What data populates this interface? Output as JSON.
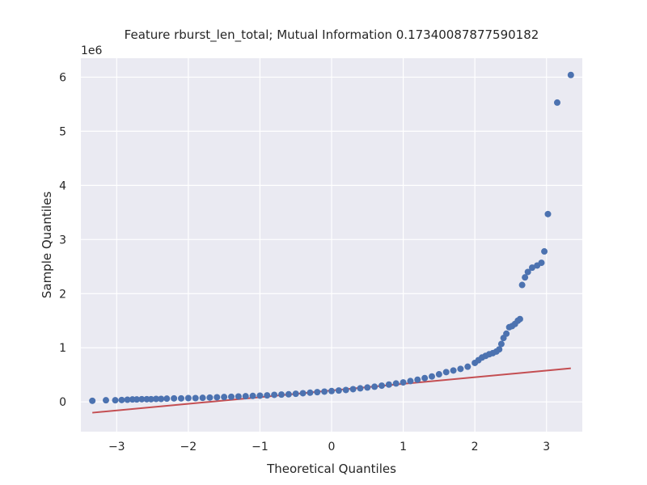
{
  "chart_data": {
    "type": "scatter",
    "title": "Feature rburst_len_total; Mutual Information 0.17340087877590182",
    "xlabel": "Theoretical Quantiles",
    "ylabel": "Sample Quantiles",
    "y_offset_label": "1e6",
    "x_ticks": [
      "−3",
      "−2",
      "−1",
      "0",
      "1",
      "2",
      "3"
    ],
    "y_ticks": [
      "0",
      "1",
      "2",
      "3",
      "4",
      "5",
      "6"
    ],
    "x_tick_values": [
      -3,
      -2,
      -1,
      0,
      1,
      2,
      3
    ],
    "y_tick_values": [
      0,
      1,
      2,
      3,
      4,
      5,
      6
    ],
    "xlim": [
      -3.5,
      3.5
    ],
    "ylim": [
      -0.55,
      6.35
    ],
    "grid": true,
    "colors": {
      "background": "#eaeaf2",
      "grid": "#ffffff",
      "points": "#4c72b0",
      "reference_line": "#c44e52"
    },
    "reference_line": {
      "x": [
        -3.34,
        3.34
      ],
      "y": [
        -0.2,
        0.62
      ]
    },
    "series": [
      {
        "values": [
          [
            -3.34,
            0.02
          ],
          [
            -3.15,
            0.03
          ],
          [
            -3.02,
            0.03
          ],
          [
            -2.93,
            0.035
          ],
          [
            -2.85,
            0.04
          ],
          [
            -2.78,
            0.045
          ],
          [
            -2.72,
            0.045
          ],
          [
            -2.65,
            0.05
          ],
          [
            -2.58,
            0.05
          ],
          [
            -2.52,
            0.05
          ],
          [
            -2.45,
            0.055
          ],
          [
            -2.38,
            0.055
          ],
          [
            -2.3,
            0.06
          ],
          [
            -2.2,
            0.065
          ],
          [
            -2.1,
            0.065
          ],
          [
            -2.0,
            0.07
          ],
          [
            -1.9,
            0.07
          ],
          [
            -1.8,
            0.075
          ],
          [
            -1.7,
            0.08
          ],
          [
            -1.6,
            0.085
          ],
          [
            -1.5,
            0.09
          ],
          [
            -1.4,
            0.095
          ],
          [
            -1.3,
            0.1
          ],
          [
            -1.2,
            0.105
          ],
          [
            -1.1,
            0.11
          ],
          [
            -1.0,
            0.115
          ],
          [
            -0.9,
            0.12
          ],
          [
            -0.8,
            0.13
          ],
          [
            -0.7,
            0.135
          ],
          [
            -0.6,
            0.14
          ],
          [
            -0.5,
            0.15
          ],
          [
            -0.4,
            0.16
          ],
          [
            -0.3,
            0.17
          ],
          [
            -0.2,
            0.18
          ],
          [
            -0.1,
            0.19
          ],
          [
            0.0,
            0.2
          ],
          [
            0.1,
            0.21
          ],
          [
            0.2,
            0.22
          ],
          [
            0.3,
            0.235
          ],
          [
            0.4,
            0.25
          ],
          [
            0.5,
            0.265
          ],
          [
            0.6,
            0.28
          ],
          [
            0.7,
            0.3
          ],
          [
            0.8,
            0.32
          ],
          [
            0.9,
            0.34
          ],
          [
            1.0,
            0.36
          ],
          [
            1.1,
            0.385
          ],
          [
            1.2,
            0.41
          ],
          [
            1.3,
            0.44
          ],
          [
            1.4,
            0.47
          ],
          [
            1.5,
            0.51
          ],
          [
            1.6,
            0.55
          ],
          [
            1.7,
            0.58
          ],
          [
            1.8,
            0.61
          ],
          [
            1.9,
            0.65
          ],
          [
            2.0,
            0.72
          ],
          [
            2.05,
            0.77
          ],
          [
            2.1,
            0.82
          ],
          [
            2.15,
            0.85
          ],
          [
            2.2,
            0.88
          ],
          [
            2.25,
            0.9
          ],
          [
            2.3,
            0.93
          ],
          [
            2.34,
            0.97
          ],
          [
            2.37,
            1.07
          ],
          [
            2.4,
            1.18
          ],
          [
            2.44,
            1.26
          ],
          [
            2.48,
            1.38
          ],
          [
            2.52,
            1.4
          ],
          [
            2.56,
            1.44
          ],
          [
            2.6,
            1.5
          ],
          [
            2.63,
            1.53
          ],
          [
            2.66,
            2.16
          ],
          [
            2.7,
            2.3
          ],
          [
            2.74,
            2.4
          ],
          [
            2.8,
            2.48
          ],
          [
            2.87,
            2.52
          ],
          [
            2.93,
            2.57
          ],
          [
            2.97,
            2.78
          ],
          [
            3.02,
            3.47
          ],
          [
            3.15,
            5.53
          ],
          [
            3.34,
            6.04
          ]
        ]
      }
    ]
  }
}
